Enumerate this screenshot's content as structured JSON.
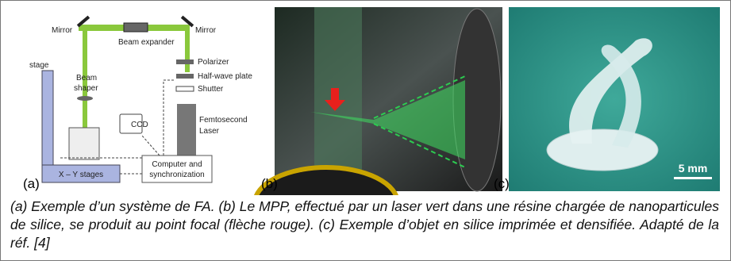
{
  "figure": {
    "panel_a": {
      "label": "(a)",
      "mirror_left": "Mirror",
      "mirror_right": "Mirror",
      "beam_expander": "Beam expander",
      "polarizer": "Polarizer",
      "half_wave_plate": "Half-wave plate",
      "shutter": "Shutter",
      "stage": "stage",
      "beam_shaper": [
        "Beam",
        "shaper"
      ],
      "ccd": "CCD",
      "laser": [
        "Femtosecond",
        "Laser"
      ],
      "computer": [
        "Computer and",
        "synchronization"
      ],
      "xy_stages": "X – Y stages"
    },
    "panel_b": {
      "label": "(b)"
    },
    "panel_c": {
      "label": "(c)",
      "scale_bar": "5 mm"
    },
    "caption": "(a) Exemple d’un système de FA. (b) Le MPP, effectué par un laser vert dans une résine chargée de nanoparticules de silice, se produit au point focal (flèche rouge). (c) Exemple d’objet en silice imprimée et densifiée. Adapté de la réf. [4]"
  }
}
